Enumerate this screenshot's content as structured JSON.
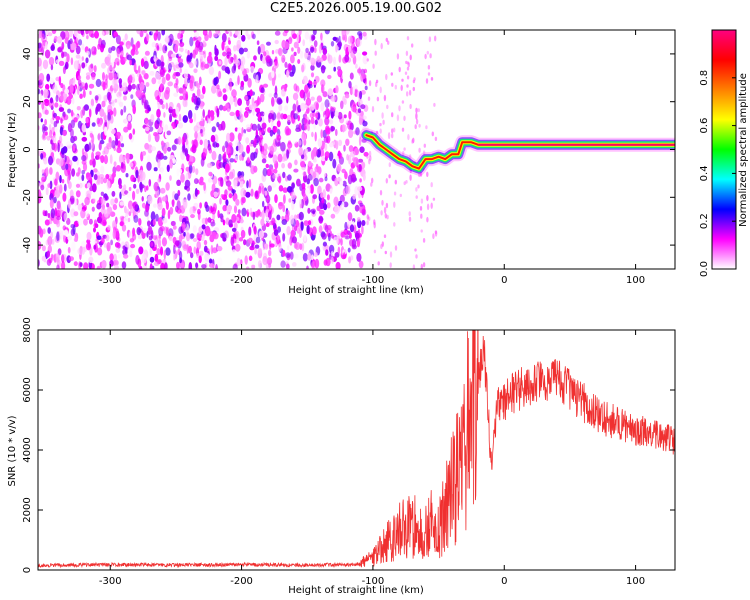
{
  "title": "C2E5.2026.005.19.00.G02",
  "chart_data": [
    {
      "type": "heatmap",
      "xlabel": "Height of straight line (km)",
      "ylabel": "Frequency (Hz)",
      "xlim": [
        -355,
        130
      ],
      "ylim": [
        -50,
        50
      ],
      "xticks": [
        -300,
        -200,
        -100,
        0,
        100
      ],
      "yticks": [
        -40,
        -20,
        0,
        20,
        40
      ],
      "colorbar": {
        "label": "Normalized spectral amplitude",
        "range": [
          0,
          1
        ],
        "ticks": [
          0.0,
          0.2,
          0.4,
          0.6,
          0.8
        ],
        "colors": [
          "#ffffff",
          "#ff00ff",
          "#0000ff",
          "#00ffff",
          "#00ff00",
          "#ffff00",
          "#ff8000",
          "#ff0000",
          "#ff0080"
        ]
      },
      "noise_region": {
        "x_from": -355,
        "x_to": -105,
        "freq_from": -50,
        "freq_to": 50,
        "amplitude_range": [
          0.0,
          0.2
        ]
      },
      "ridge": [
        {
          "x": -105,
          "f": 6
        },
        {
          "x": -100,
          "f": 5
        },
        {
          "x": -95,
          "f": 2
        },
        {
          "x": -90,
          "f": 0
        },
        {
          "x": -85,
          "f": -2
        },
        {
          "x": -80,
          "f": -4
        },
        {
          "x": -75,
          "f": -5
        },
        {
          "x": -70,
          "f": -7
        },
        {
          "x": -65,
          "f": -8
        },
        {
          "x": -60,
          "f": -4
        },
        {
          "x": -55,
          "f": -4
        },
        {
          "x": -50,
          "f": -3
        },
        {
          "x": -45,
          "f": -4
        },
        {
          "x": -40,
          "f": -2
        },
        {
          "x": -35,
          "f": -2
        },
        {
          "x": -32,
          "f": 3
        },
        {
          "x": -25,
          "f": 3
        },
        {
          "x": -20,
          "f": 2
        },
        {
          "x": 0,
          "f": 2
        },
        {
          "x": 50,
          "f": 2
        },
        {
          "x": 100,
          "f": 2
        },
        {
          "x": 130,
          "f": 2
        }
      ]
    },
    {
      "type": "line",
      "xlabel": "Height of straight line (km)",
      "ylabel": "SNR (10 * v/v)",
      "xlim": [
        -355,
        130
      ],
      "ylim": [
        0,
        8000
      ],
      "xticks": [
        -300,
        -200,
        -100,
        0,
        100
      ],
      "yticks": [
        0,
        2000,
        4000,
        6000,
        8000
      ],
      "line_color": "#f03030",
      "series": [
        {
          "x": [
            -355,
            -300,
            -250,
            -200,
            -150,
            -120,
            -110,
            -100,
            -90,
            -80,
            -70,
            -60,
            -55,
            -50,
            -45,
            -40,
            -35,
            -30,
            -25,
            -20,
            -15,
            -10,
            -5,
            0,
            10,
            20,
            30,
            40,
            50,
            60,
            70,
            80,
            90,
            100,
            110,
            120,
            130
          ],
          "y": [
            150,
            180,
            170,
            180,
            160,
            180,
            200,
            400,
            900,
            1300,
            1500,
            1200,
            1600,
            1300,
            2000,
            2800,
            3500,
            4200,
            5500,
            6500,
            7200,
            3500,
            5500,
            5600,
            6000,
            6200,
            6300,
            6300,
            6000,
            5600,
            5200,
            5000,
            4800,
            4700,
            4600,
            4400,
            4300
          ]
        }
      ]
    }
  ]
}
